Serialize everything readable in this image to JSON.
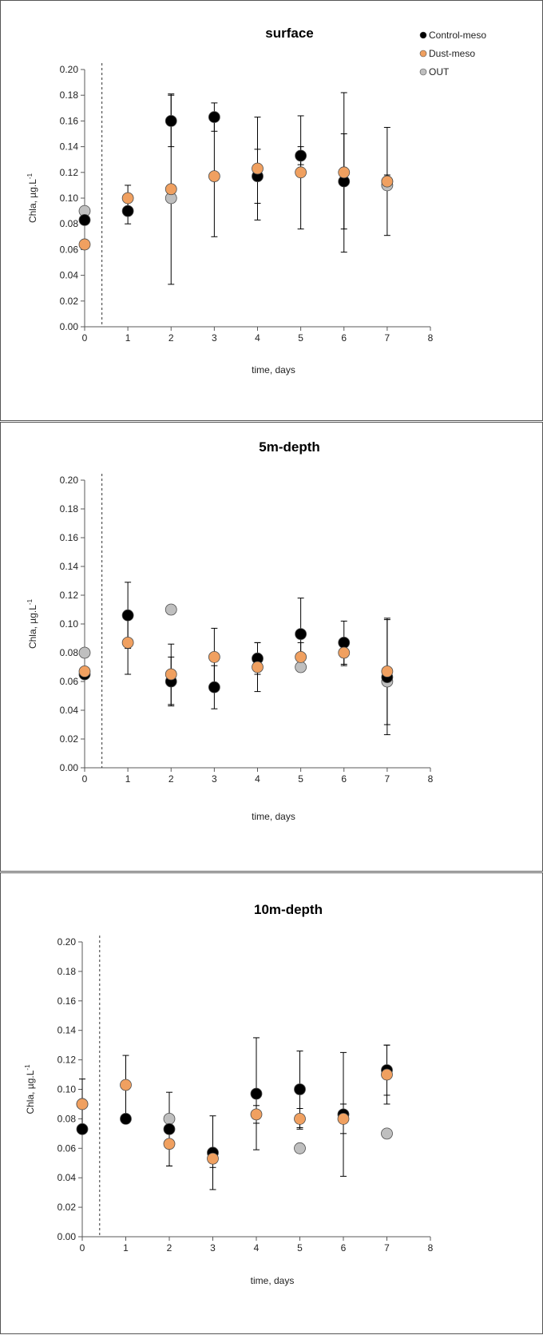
{
  "colors": {
    "control": "#000000",
    "dust": "#F0A060",
    "out": "#BFBFBF",
    "axis": "#595959",
    "errorbar": "#000000"
  },
  "legend": {
    "position": "top-right",
    "items": [
      {
        "label": "Control-meso",
        "series": "control"
      },
      {
        "label": "Dust-meso",
        "series": "dust"
      },
      {
        "label": "OUT",
        "series": "out"
      }
    ]
  },
  "chart_data": [
    {
      "type": "scatter",
      "title": "surface",
      "xlabel": "time, days",
      "ylabel_main": "Chla, µg.L",
      "ylabel_sup": "-1",
      "xlim": [
        0,
        8
      ],
      "ylim": [
        0,
        0.2
      ],
      "xticks": [
        "0",
        "1",
        "2",
        "3",
        "4",
        "5",
        "6",
        "7",
        "8"
      ],
      "yticks": [
        "0.00",
        "0.02",
        "0.04",
        "0.06",
        "0.08",
        "0.10",
        "0.12",
        "0.14",
        "0.16",
        "0.18",
        "0.20"
      ],
      "vline_x": 0.4,
      "grid": false,
      "series": [
        {
          "name": "Control-meso",
          "key": "control",
          "x": [
            0,
            1,
            2,
            3,
            4,
            5,
            6,
            7
          ],
          "y": [
            0.083,
            0.09,
            0.16,
            0.163,
            0.117,
            0.133,
            0.113,
            0.113
          ],
          "err": [
            null,
            0.01,
            0.02,
            0.011,
            0.021,
            0.007,
            0.037,
            0.005
          ]
        },
        {
          "name": "Dust-meso",
          "key": "dust",
          "x": [
            0,
            1,
            2,
            3,
            4,
            5,
            6,
            7
          ],
          "y": [
            0.064,
            0.1,
            0.107,
            0.117,
            0.123,
            0.12,
            0.12,
            0.113
          ],
          "err": [
            null,
            0.01,
            0.074,
            0.047,
            0.04,
            0.044,
            0.062,
            0.042
          ]
        },
        {
          "name": "OUT",
          "key": "out",
          "x": [
            0,
            2,
            7
          ],
          "y": [
            0.09,
            0.1,
            0.11
          ],
          "err": [
            null,
            null,
            null
          ]
        }
      ]
    },
    {
      "type": "scatter",
      "title": "5m-depth",
      "xlabel": "time, days",
      "ylabel_main": "Chla, µg.L",
      "ylabel_sup": "-1",
      "xlim": [
        0,
        8
      ],
      "ylim": [
        0,
        0.2
      ],
      "xticks": [
        "0",
        "1",
        "2",
        "3",
        "4",
        "5",
        "6",
        "7",
        "8"
      ],
      "yticks": [
        "0.00",
        "0.02",
        "0.04",
        "0.06",
        "0.08",
        "0.10",
        "0.12",
        "0.14",
        "0.16",
        "0.18",
        "0.20"
      ],
      "vline_x": 0.4,
      "grid": false,
      "series": [
        {
          "name": "Control-meso",
          "key": "control",
          "x": [
            0,
            1,
            2,
            3,
            4,
            5,
            6,
            7
          ],
          "y": [
            0.065,
            0.106,
            0.06,
            0.056,
            0.076,
            0.093,
            0.087,
            0.063
          ],
          "err": [
            null,
            0.023,
            0.017,
            0.015,
            0.011,
            0.025,
            0.015,
            0.04
          ]
        },
        {
          "name": "Dust-meso",
          "key": "dust",
          "x": [
            0,
            1,
            2,
            3,
            4,
            5,
            6,
            7
          ],
          "y": [
            0.067,
            0.087,
            0.065,
            0.077,
            0.07,
            0.077,
            0.08,
            0.067
          ],
          "err": [
            null,
            0.022,
            0.021,
            0.02,
            0.017,
            0.01,
            0.009,
            0.037
          ]
        },
        {
          "name": "OUT",
          "key": "out",
          "x": [
            0,
            2,
            5,
            7
          ],
          "y": [
            0.08,
            0.11,
            0.07,
            0.06
          ],
          "err": [
            null,
            null,
            null,
            null
          ]
        }
      ]
    },
    {
      "type": "scatter",
      "title": "10m-depth",
      "xlabel": "time, days",
      "ylabel_main": "Chla, µg.L",
      "ylabel_sup": "-1",
      "xlim": [
        0,
        8
      ],
      "ylim": [
        0,
        0.2
      ],
      "xticks": [
        "0",
        "1",
        "2",
        "3",
        "4",
        "5",
        "6",
        "7",
        "8"
      ],
      "yticks": [
        "0.00",
        "0.02",
        "0.04",
        "0.06",
        "0.08",
        "0.10",
        "0.12",
        "0.14",
        "0.16",
        "0.18",
        "0.20"
      ],
      "vline_x": 0.4,
      "grid": false,
      "series": [
        {
          "name": "Control-meso",
          "key": "control",
          "x": [
            0,
            1,
            2,
            3,
            4,
            5,
            6,
            7
          ],
          "y": [
            0.073,
            0.08,
            0.073,
            0.057,
            0.097,
            0.1,
            0.083,
            0.113
          ],
          "err": [
            null,
            null,
            0.025,
            0.025,
            0.038,
            0.026,
            0.042,
            0.017
          ]
        },
        {
          "name": "Dust-meso",
          "key": "dust",
          "x": [
            0,
            1,
            2,
            3,
            4,
            5,
            6,
            7
          ],
          "y": [
            0.09,
            0.103,
            0.063,
            0.053,
            0.083,
            0.08,
            0.08,
            0.11
          ],
          "err": [
            0.017,
            0.02,
            0.015,
            0.006,
            0.006,
            0.007,
            0.01,
            0.02
          ]
        },
        {
          "name": "OUT",
          "key": "out",
          "x": [
            0,
            2,
            5,
            7
          ],
          "y": [
            0.09,
            0.08,
            0.06,
            0.07
          ],
          "err": [
            null,
            null,
            null,
            null
          ]
        }
      ]
    }
  ]
}
